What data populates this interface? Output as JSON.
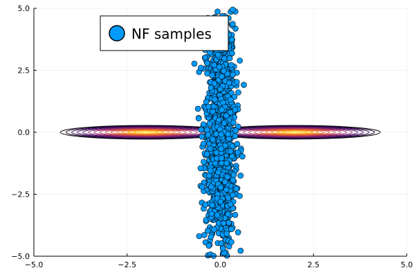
{
  "chart_data": {
    "type": "scatter",
    "title": "",
    "xlabel": "",
    "ylabel": "",
    "xlim": [
      -5,
      5
    ],
    "ylim": [
      -5,
      5
    ],
    "x_ticks": [
      -5.0,
      -2.5,
      0.0,
      2.5,
      5.0
    ],
    "y_ticks": [
      -5.0,
      -2.5,
      0.0,
      2.5,
      5.0
    ],
    "x_tick_labels": [
      "−5.0",
      "−2.5",
      "0.0",
      "2.5",
      "5.0"
    ],
    "y_tick_labels": [
      "−5.0",
      "−2.5",
      "0.0",
      "2.5",
      "5.0"
    ],
    "grid": true,
    "legend": {
      "placement": "top-left",
      "entries": [
        "NF samples"
      ]
    },
    "contour": {
      "type": "contour",
      "components": [
        {
          "center": [
            -2,
            0
          ],
          "sx": 0.75,
          "sy": 0.09
        },
        {
          "center": [
            2,
            0
          ],
          "sx": 0.75,
          "sy": 0.09
        }
      ],
      "outer_extent_x": [
        -4.4,
        4.4
      ],
      "colormap": [
        "#000004",
        "#420a68",
        "#932667",
        "#dd513a",
        "#fca50a",
        "#fcffa4"
      ]
    },
    "series": [
      {
        "name": "NF samples",
        "color": "#009af9",
        "edge_color": "#000000",
        "distribution": {
          "x_center": 0.0,
          "x_std": 0.2,
          "y_center": 0.0,
          "y_std": 2.4,
          "count": 1400
        },
        "x_range": [
          -0.7,
          0.8
        ],
        "y_range": [
          -5,
          5
        ]
      }
    ]
  },
  "legend": {
    "label": "NF samples"
  }
}
